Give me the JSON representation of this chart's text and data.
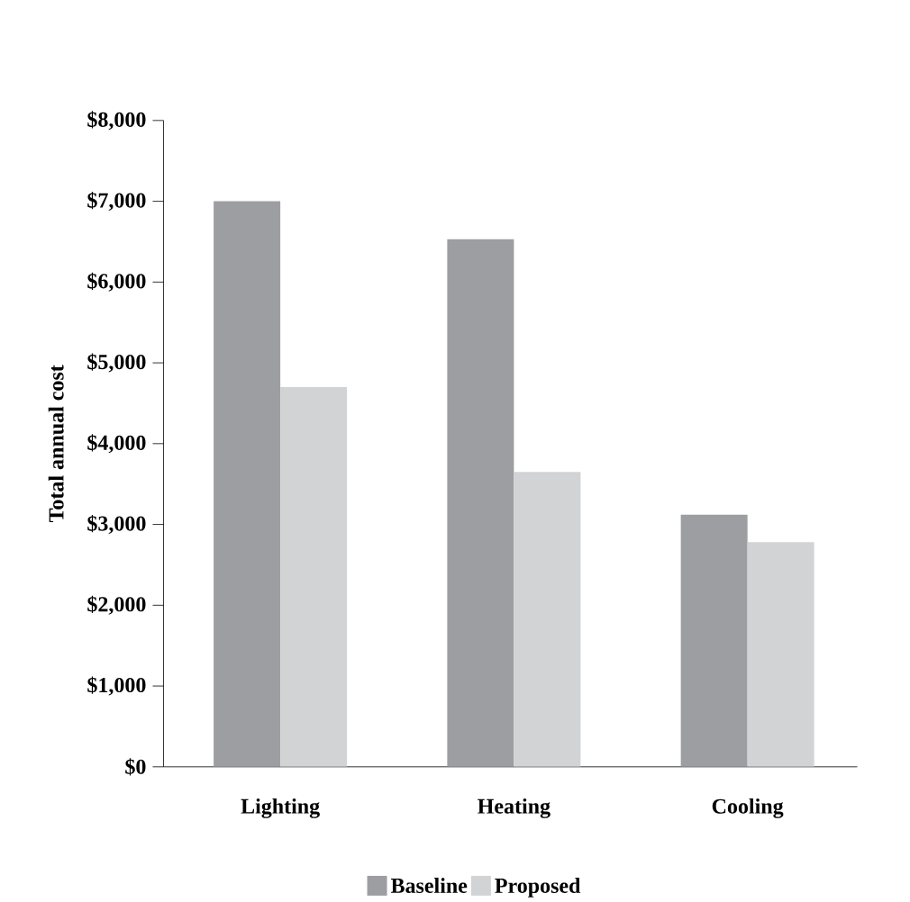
{
  "chart_data": {
    "type": "bar",
    "ylabel": "Total annual cost",
    "categories": [
      "Lighting",
      "Heating",
      "Cooling"
    ],
    "series": [
      {
        "name": "Baseline",
        "color": "#9d9ea2",
        "values": [
          7000,
          6530,
          3120
        ]
      },
      {
        "name": "Proposed",
        "color": "#d2d3d5",
        "values": [
          4700,
          3650,
          2780
        ]
      }
    ],
    "ylim": [
      0,
      8000
    ],
    "yticks": [
      {
        "value": 0,
        "label": "$0"
      },
      {
        "value": 1000,
        "label": "$1,000"
      },
      {
        "value": 2000,
        "label": "$2,000"
      },
      {
        "value": 3000,
        "label": "$3,000"
      },
      {
        "value": 4000,
        "label": "$4,000"
      },
      {
        "value": 5000,
        "label": "$5,000"
      },
      {
        "value": 6000,
        "label": "$6,000"
      },
      {
        "value": 7000,
        "label": "$7,000"
      },
      {
        "value": 8000,
        "label": "$8,000"
      }
    ],
    "legend": "bottom",
    "grid": false
  }
}
